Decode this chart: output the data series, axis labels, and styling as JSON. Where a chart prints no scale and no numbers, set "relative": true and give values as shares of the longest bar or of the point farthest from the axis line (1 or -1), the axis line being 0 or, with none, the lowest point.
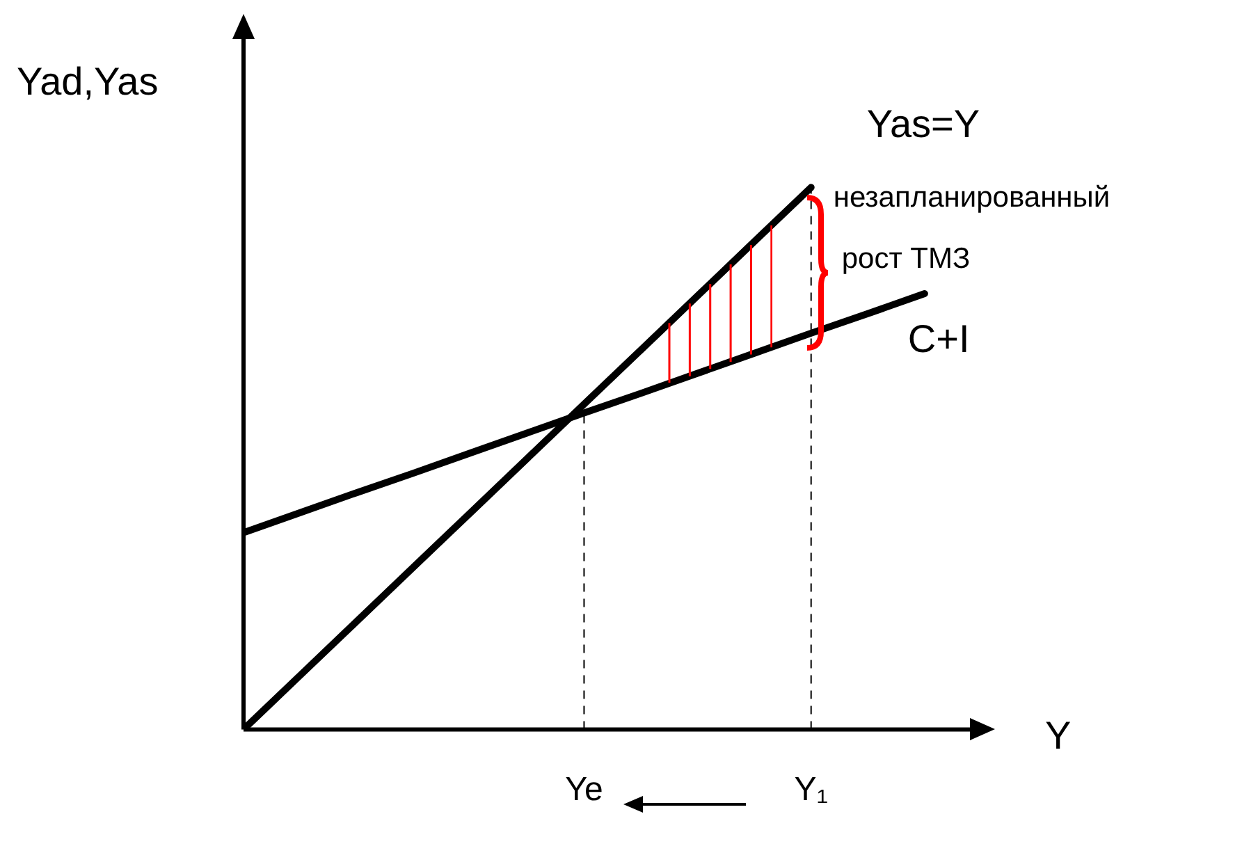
{
  "chart_data": {
    "type": "line",
    "relative": true,
    "ylabel": "Yad,Yas",
    "xlabel": "Y",
    "legend": false,
    "marker": "none",
    "categories": [
      null,
      null,
      null,
      null,
      null,
      null,
      "Ye",
      null,
      null,
      null,
      "Y₁",
      null,
      null
    ],
    "series": [
      {
        "name": "Yas=Y",
        "color": "#000000",
        "values": [
          0,
          0.1,
          0.2,
          0.3,
          0.4,
          0.5,
          0.6,
          0.7,
          0.8,
          0.9,
          1,
          null,
          null
        ]
      },
      {
        "name": "C+I",
        "color": "#000000",
        "values": [
          0.363,
          0.4,
          0.437,
          0.473,
          0.51,
          0.547,
          0.584,
          0.62,
          0.657,
          0.694,
          0.731,
          0.767,
          0.804
        ]
      }
    ],
    "ref_lines": [
      {
        "axis": "x",
        "value": "Ye",
        "line_style": "dashed",
        "color": "#000000"
      },
      {
        "axis": "x",
        "value": "Y₁",
        "line_style": "dashed",
        "color": "#000000"
      }
    ],
    "annotations": [
      "незапланированный рост ТМЗ"
    ]
  }
}
